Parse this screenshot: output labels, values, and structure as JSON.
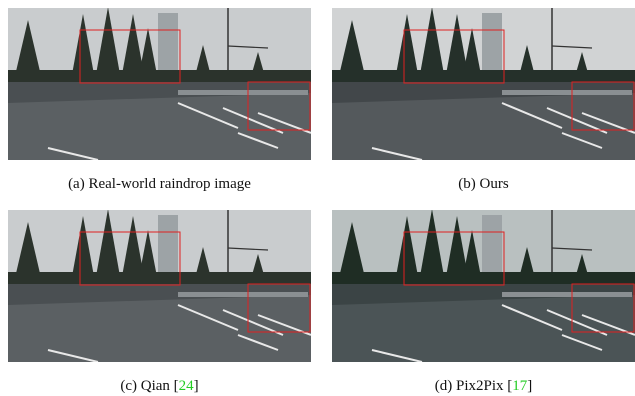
{
  "panels": [
    {
      "label": "(a)",
      "text": "Real-world raindrop image"
    },
    {
      "label": "(b)",
      "text": "Ours"
    },
    {
      "label": "(c)",
      "text": "Qian",
      "citation": {
        "open": "[",
        "number": "24",
        "close": "]"
      }
    },
    {
      "label": "(d)",
      "text": "Pix2Pix",
      "citation": {
        "open": "[",
        "number": "17",
        "close": "]"
      }
    }
  ]
}
